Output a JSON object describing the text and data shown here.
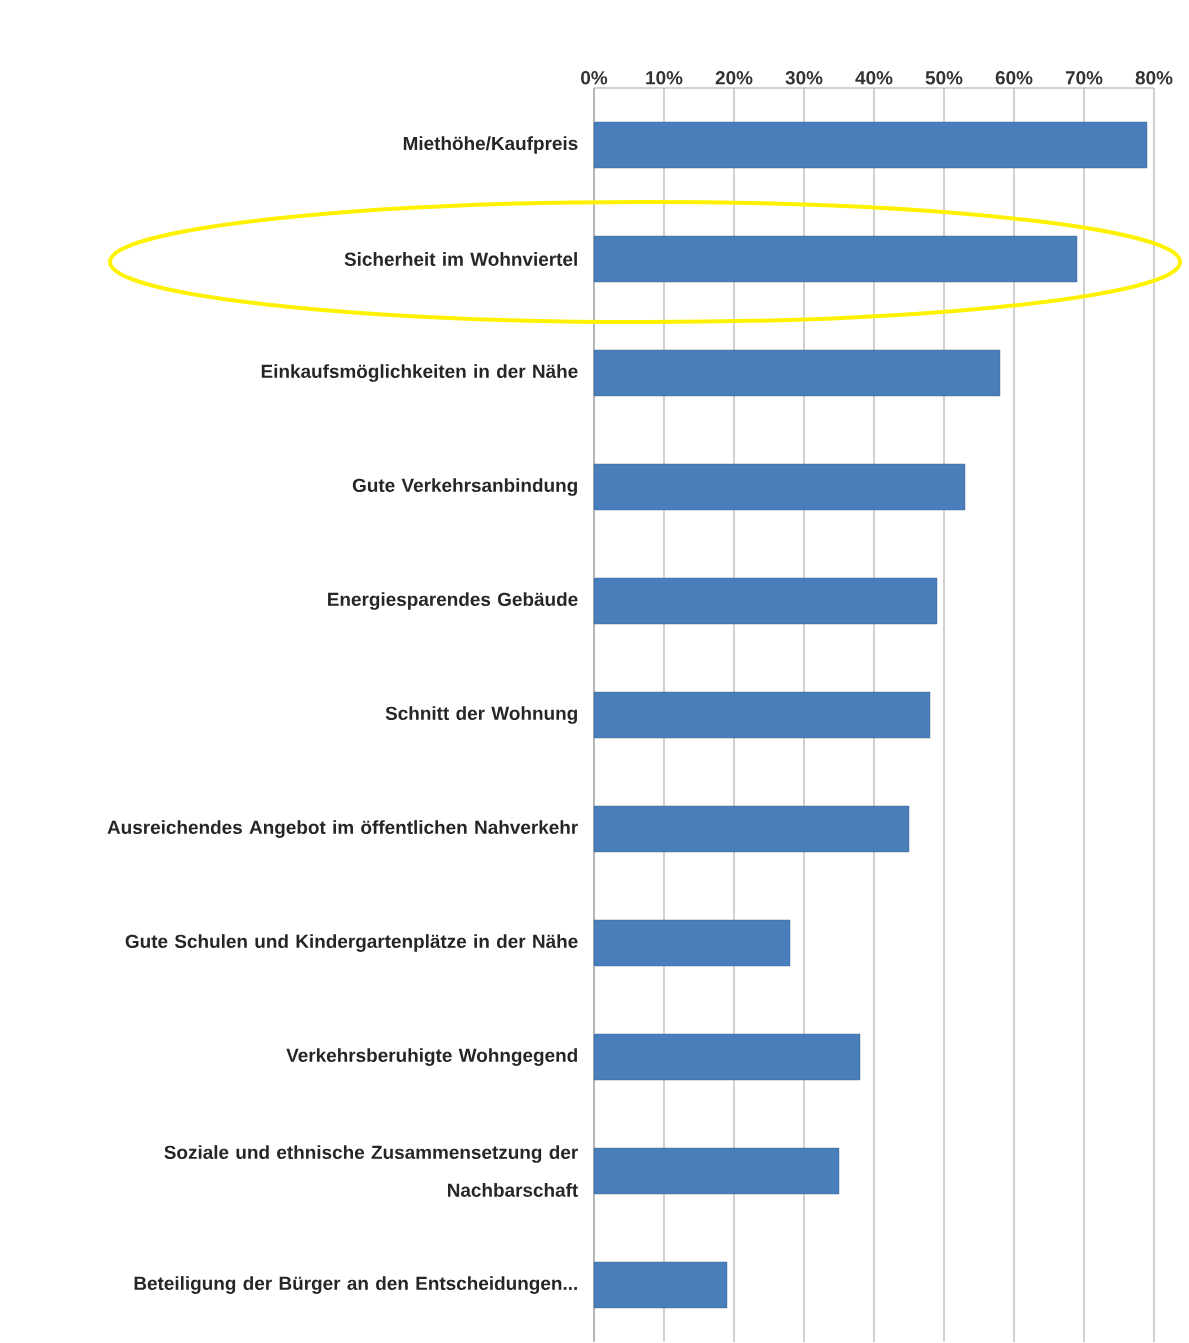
{
  "chart_data": {
    "type": "bar",
    "orientation": "horizontal",
    "categories": [
      "Miethöhe/Kaufpreis",
      "Sicherheit im Wohnviertel",
      "Einkaufsmöglichkeiten in der Nähe",
      "Gute Verkehrsanbindung",
      "Energiesparendes Gebäude",
      "Schnitt der Wohnung",
      "Ausreichendes Angebot im öffentlichen Nahverkehr",
      "Gute Schulen und Kindergartenplätze in der Nähe",
      "Verkehrsberuhigte Wohngegend",
      "Soziale und ethnische Zusammensetzung der Nachbarschaft",
      "Beteiligung der Bürger an den Entscheidungen..."
    ],
    "values": [
      79,
      69,
      58,
      53,
      49,
      48,
      45,
      28,
      38,
      35,
      19
    ],
    "color": "#4a7ebb",
    "xlim": [
      0,
      80
    ],
    "xticks": [
      {
        "value": 0,
        "label": "0%"
      },
      {
        "value": 10,
        "label": "10%"
      },
      {
        "value": 20,
        "label": "20%"
      },
      {
        "value": 30,
        "label": "30%"
      },
      {
        "value": 40,
        "label": "40%"
      },
      {
        "value": 50,
        "label": "50%"
      },
      {
        "value": 60,
        "label": "60%"
      },
      {
        "value": 70,
        "label": "70%"
      },
      {
        "value": 80,
        "label": "80%"
      }
    ],
    "grid": "x"
  }
}
